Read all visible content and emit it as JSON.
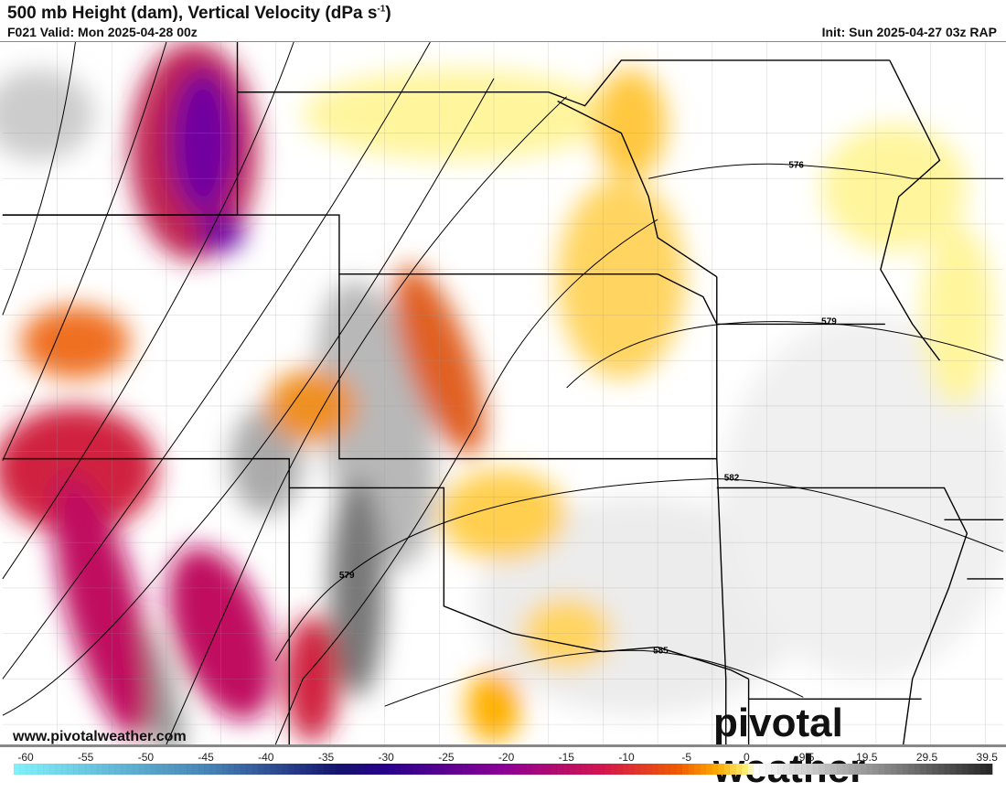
{
  "header": {
    "title_main": "500 mb Height (dam), Vertical Velocity (dPa s",
    "title_sup": "-1",
    "title_end": ")",
    "valid": "F021 Valid: Mon 2025-04-28 00z",
    "init": "Init: Sun 2025-04-27 03z RAP"
  },
  "map": {
    "contour_labels": [
      "576",
      "579",
      "579",
      "582",
      "585"
    ],
    "positive_color_scale": [
      "#ffffff",
      "#f0f0f0",
      "#d0d0d0",
      "#a8a8a8",
      "#707070",
      "#303030"
    ],
    "negative_color_scale": [
      "#fff59d",
      "#ffb000",
      "#ee5a00",
      "#d02040",
      "#a0109a",
      "#6a0098",
      "#2a0080"
    ]
  },
  "footer": {
    "url": "www.pivotalweather.com",
    "brand": "pivotal weather"
  },
  "colorbar": {
    "ticks": [
      "-60",
      "-55",
      "-50",
      "-45",
      "-40",
      "-35",
      "-30",
      "-25",
      "-20",
      "-15",
      "-10",
      "-5",
      "0",
      "9.5",
      "19.5",
      "29.5",
      "39.5"
    ]
  }
}
